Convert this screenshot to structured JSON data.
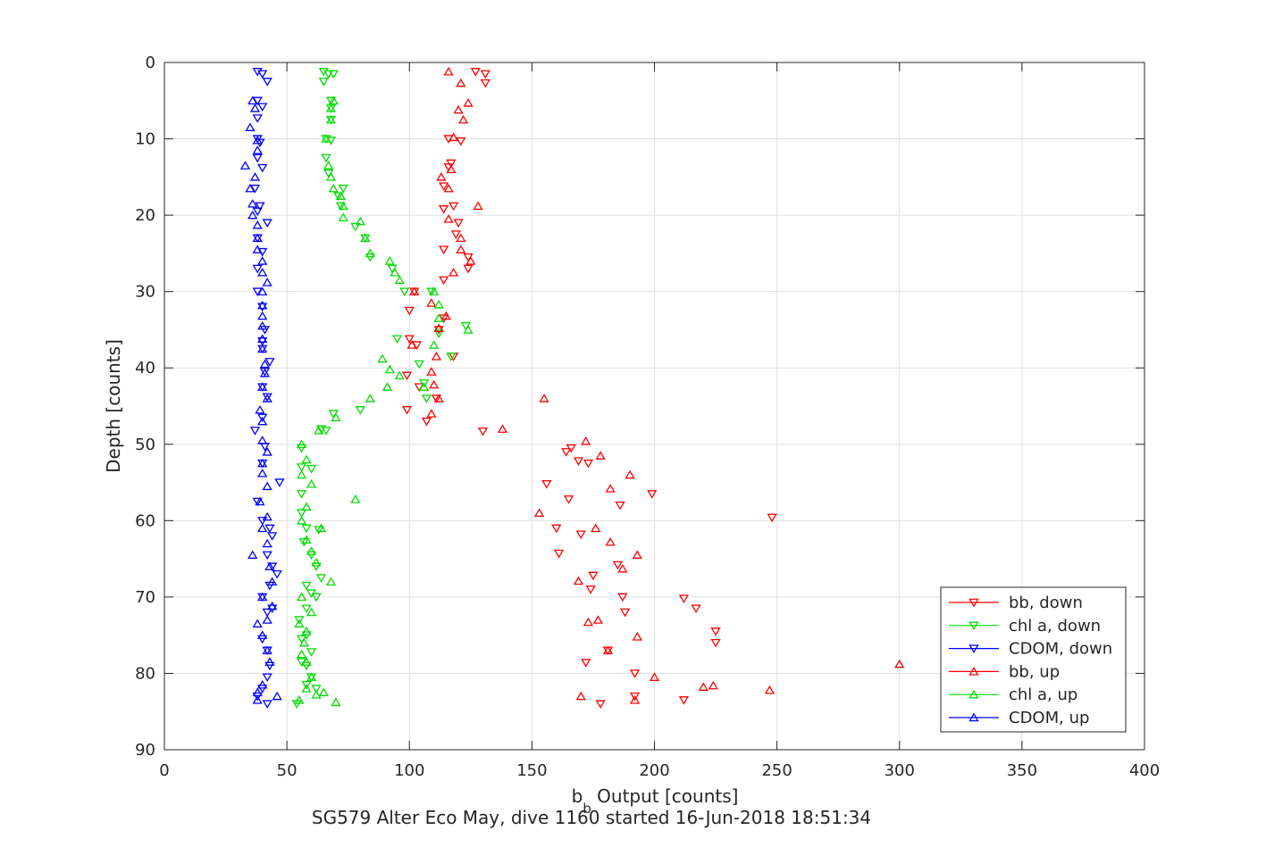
{
  "chart_data": {
    "type": "scatter",
    "title": "SG579 Alter Eco May, dive 1160 started 16-Jun-2018 18:51:34",
    "xlabel": {
      "main": "b",
      "subscript": "b",
      "suffix": " Output [counts]"
    },
    "ylabel": "Depth [counts]",
    "xlim": [
      0,
      400
    ],
    "ylim": [
      0,
      90
    ],
    "y_reversed": true,
    "xticks": [
      0,
      50,
      100,
      150,
      200,
      250,
      300,
      350,
      400
    ],
    "yticks": [
      0,
      10,
      20,
      30,
      40,
      50,
      60,
      70,
      80,
      90
    ],
    "grid": true,
    "legend_position": "bottom-right",
    "series": [
      {
        "name": "bb, down",
        "color": "#ff0000",
        "marker": "triangle-down",
        "points": [
          [
            127,
            1.2
          ],
          [
            131,
            1.5
          ],
          [
            131,
            2.7
          ],
          [
            116,
            10
          ],
          [
            121,
            10.3
          ],
          [
            116,
            13.7
          ],
          [
            117,
            13.2
          ],
          [
            114,
            16.2
          ],
          [
            118,
            18.8
          ],
          [
            114,
            19.2
          ],
          [
            120,
            21.0
          ],
          [
            119,
            22.5
          ],
          [
            114,
            24.5
          ],
          [
            124,
            25.5
          ],
          [
            124,
            27.0
          ],
          [
            114,
            28.5
          ],
          [
            102,
            30
          ],
          [
            100,
            32.5
          ],
          [
            114,
            33.5
          ],
          [
            112,
            35.0
          ],
          [
            100,
            36.2
          ],
          [
            103,
            37.0
          ],
          [
            118,
            38.5
          ],
          [
            99,
            41.0
          ],
          [
            104,
            42.5
          ],
          [
            111,
            44.0
          ],
          [
            99,
            45.5
          ],
          [
            107,
            47.0
          ],
          [
            130,
            48.3
          ],
          [
            166,
            50.5
          ],
          [
            164,
            51.0
          ],
          [
            169,
            52.2
          ],
          [
            173,
            52.5
          ],
          [
            156,
            55.2
          ],
          [
            199,
            56.5
          ],
          [
            165,
            57.2
          ],
          [
            186,
            58.0
          ],
          [
            248,
            59.6
          ],
          [
            160,
            61.0
          ],
          [
            170,
            61.8
          ],
          [
            161,
            64.3
          ],
          [
            185,
            65.8
          ],
          [
            175,
            67.2
          ],
          [
            174,
            69.0
          ],
          [
            187,
            70.0
          ],
          [
            212,
            70.2
          ],
          [
            192,
            80.0
          ],
          [
            192,
            83.0
          ],
          [
            178,
            84.0
          ],
          [
            181,
            77.0
          ],
          [
            212,
            83.5
          ],
          [
            225,
            74.5
          ],
          [
            225,
            76.0
          ],
          [
            172,
            78.6
          ],
          [
            188,
            72.0
          ],
          [
            217,
            71.5
          ]
        ]
      },
      {
        "name": "chl a, down",
        "color": "#00dd00",
        "marker": "triangle-down",
        "points": [
          [
            65,
            1.2
          ],
          [
            67,
            1.5
          ],
          [
            69,
            1.5
          ],
          [
            65,
            2.5
          ],
          [
            68,
            5.0
          ],
          [
            68,
            6.0
          ],
          [
            68,
            7.5
          ],
          [
            66,
            10.0
          ],
          [
            68,
            10.2
          ],
          [
            66,
            12.5
          ],
          [
            67,
            14.5
          ],
          [
            73,
            16.5
          ],
          [
            71,
            17.5
          ],
          [
            72,
            18.8
          ],
          [
            78,
            21.5
          ],
          [
            82,
            23.0
          ],
          [
            84,
            25.5
          ],
          [
            93,
            27.0
          ],
          [
            98,
            30.0
          ],
          [
            109,
            30.0
          ],
          [
            112,
            35.5
          ],
          [
            123,
            34.5
          ],
          [
            95,
            36.2
          ],
          [
            117,
            38.5
          ],
          [
            104,
            39.5
          ],
          [
            106,
            42.0
          ],
          [
            107,
            44.0
          ],
          [
            80,
            45.5
          ],
          [
            69,
            46.0
          ],
          [
            64,
            48.0
          ],
          [
            66,
            48.2
          ],
          [
            56,
            50.5
          ],
          [
            56,
            53.0
          ],
          [
            60,
            53.2
          ],
          [
            56,
            56.5
          ],
          [
            56,
            59.0
          ],
          [
            58,
            61.0
          ],
          [
            63,
            61.2
          ],
          [
            57,
            62.8
          ],
          [
            60,
            64.5
          ],
          [
            62,
            66.0
          ],
          [
            64,
            67.5
          ],
          [
            58,
            68.5
          ],
          [
            60,
            69.5
          ],
          [
            62,
            70.0
          ],
          [
            58,
            71.5
          ],
          [
            55,
            73.0
          ],
          [
            58,
            75.0
          ],
          [
            56,
            75.5
          ],
          [
            60,
            77.2
          ],
          [
            56,
            78.5
          ],
          [
            58,
            79.0
          ],
          [
            60,
            80.5
          ],
          [
            58,
            81.5
          ],
          [
            54,
            84.0
          ],
          [
            62,
            82.0
          ]
        ]
      },
      {
        "name": "CDOM, down",
        "color": "#0000ff",
        "marker": "triangle-down",
        "points": [
          [
            38,
            1.2
          ],
          [
            40,
            1.5
          ],
          [
            42,
            2.5
          ],
          [
            38,
            5.0
          ],
          [
            40,
            5.8
          ],
          [
            38,
            7.3
          ],
          [
            38,
            10.0
          ],
          [
            39,
            10.5
          ],
          [
            38,
            12.5
          ],
          [
            40,
            13.8
          ],
          [
            37,
            16.5
          ],
          [
            39,
            18.8
          ],
          [
            38,
            19.5
          ],
          [
            42,
            21.0
          ],
          [
            38,
            23.0
          ],
          [
            40,
            24.8
          ],
          [
            38,
            27.0
          ],
          [
            38,
            30.0
          ],
          [
            40,
            32.0
          ],
          [
            41,
            35.0
          ],
          [
            40,
            36.5
          ],
          [
            40,
            37.5
          ],
          [
            43,
            39.2
          ],
          [
            41,
            40.5
          ],
          [
            40,
            42.5
          ],
          [
            42,
            43.8
          ],
          [
            40,
            46.5
          ],
          [
            37,
            48.2
          ],
          [
            41,
            50.3
          ],
          [
            40,
            52.5
          ],
          [
            47,
            55.0
          ],
          [
            38,
            57.5
          ],
          [
            40,
            60.0
          ],
          [
            43,
            61.0
          ],
          [
            44,
            62.0
          ],
          [
            42,
            64.5
          ],
          [
            44,
            66.0
          ],
          [
            46,
            67.0
          ],
          [
            43,
            68.5
          ],
          [
            40,
            70.0
          ],
          [
            44,
            71.5
          ],
          [
            42,
            72.0
          ],
          [
            40,
            75.5
          ],
          [
            42,
            77.0
          ],
          [
            43,
            79.0
          ],
          [
            42,
            80.5
          ],
          [
            40,
            82.0
          ],
          [
            38,
            83.0
          ],
          [
            42,
            84.0
          ]
        ]
      },
      {
        "name": "bb, up",
        "color": "#ff0000",
        "marker": "triangle-up",
        "points": [
          [
            116,
            1.2
          ],
          [
            121,
            2.7
          ],
          [
            124,
            5.3
          ],
          [
            120,
            6.2
          ],
          [
            122,
            7.5
          ],
          [
            118,
            9.8
          ],
          [
            117,
            14.0
          ],
          [
            113,
            15.0
          ],
          [
            116,
            16.5
          ],
          [
            128,
            18.8
          ],
          [
            116,
            20.5
          ],
          [
            121,
            23.0
          ],
          [
            121,
            24.5
          ],
          [
            125,
            26.0
          ],
          [
            118,
            27.5
          ],
          [
            102,
            30.0
          ],
          [
            109,
            31.5
          ],
          [
            115,
            33.2
          ],
          [
            112,
            34.8
          ],
          [
            101,
            37.0
          ],
          [
            111,
            38.5
          ],
          [
            109,
            40.5
          ],
          [
            110,
            42.2
          ],
          [
            112,
            44.0
          ],
          [
            109,
            46.0
          ],
          [
            138,
            48.0
          ],
          [
            155,
            44.0
          ],
          [
            172,
            49.6
          ],
          [
            178,
            51.5
          ],
          [
            190,
            54.0
          ],
          [
            182,
            55.8
          ],
          [
            153,
            59.0
          ],
          [
            176,
            61.0
          ],
          [
            182,
            62.8
          ],
          [
            193,
            64.5
          ],
          [
            187,
            66.3
          ],
          [
            169,
            67.9
          ],
          [
            173,
            73.3
          ],
          [
            177,
            73.0
          ],
          [
            193,
            75.2
          ],
          [
            181,
            77.0
          ],
          [
            300,
            78.8
          ],
          [
            200,
            80.5
          ],
          [
            220,
            81.8
          ],
          [
            224,
            81.6
          ],
          [
            247,
            82.2
          ],
          [
            170,
            83.0
          ],
          [
            192,
            83.5
          ]
        ]
      },
      {
        "name": "chl a, up",
        "color": "#00dd00",
        "marker": "triangle-up",
        "points": [
          [
            69,
            5.0
          ],
          [
            68,
            6.0
          ],
          [
            68,
            7.5
          ],
          [
            66,
            10.0
          ],
          [
            67,
            13.5
          ],
          [
            68,
            15.0
          ],
          [
            69,
            16.5
          ],
          [
            72,
            17.5
          ],
          [
            73,
            18.8
          ],
          [
            73,
            20.3
          ],
          [
            80,
            20.8
          ],
          [
            82,
            23.0
          ],
          [
            84,
            25.0
          ],
          [
            92,
            26.0
          ],
          [
            94,
            27.5
          ],
          [
            96,
            28.5
          ],
          [
            110,
            30.0
          ],
          [
            112,
            31.7
          ],
          [
            112,
            33.5
          ],
          [
            124,
            35.0
          ],
          [
            110,
            37.0
          ],
          [
            89,
            38.8
          ],
          [
            92,
            40.2
          ],
          [
            96,
            41.0
          ],
          [
            91,
            42.5
          ],
          [
            106,
            42.5
          ],
          [
            84,
            44.0
          ],
          [
            70,
            46.5
          ],
          [
            63,
            48.2
          ],
          [
            56,
            50.0
          ],
          [
            58,
            52.0
          ],
          [
            56,
            54.0
          ],
          [
            60,
            55.2
          ],
          [
            78,
            57.2
          ],
          [
            58,
            58.2
          ],
          [
            56,
            60.0
          ],
          [
            64,
            61.0
          ],
          [
            58,
            62.5
          ],
          [
            60,
            64.0
          ],
          [
            62,
            65.5
          ],
          [
            68,
            68.0
          ],
          [
            56,
            70.0
          ],
          [
            60,
            72.0
          ],
          [
            55,
            73.5
          ],
          [
            58,
            74.5
          ],
          [
            57,
            76.0
          ],
          [
            56,
            77.5
          ],
          [
            58,
            78.5
          ],
          [
            60,
            80.5
          ],
          [
            58,
            82.0
          ],
          [
            62,
            82.8
          ],
          [
            65,
            82.5
          ],
          [
            55,
            83.5
          ],
          [
            70,
            83.8
          ]
        ]
      },
      {
        "name": "CDOM, up",
        "color": "#0000ff",
        "marker": "triangle-up",
        "points": [
          [
            36,
            5.0
          ],
          [
            37,
            6.0
          ],
          [
            35,
            8.5
          ],
          [
            38,
            10.2
          ],
          [
            38,
            11.5
          ],
          [
            33,
            13.5
          ],
          [
            37,
            15.0
          ],
          [
            35,
            16.5
          ],
          [
            36,
            18.5
          ],
          [
            36,
            20.0
          ],
          [
            38,
            21.3
          ],
          [
            38,
            23.0
          ],
          [
            38,
            24.5
          ],
          [
            40,
            26.0
          ],
          [
            40,
            27.5
          ],
          [
            42,
            28.8
          ],
          [
            40,
            30.0
          ],
          [
            40,
            31.8
          ],
          [
            40,
            33.2
          ],
          [
            40,
            34.5
          ],
          [
            40,
            36.2
          ],
          [
            40,
            37.5
          ],
          [
            41,
            39.5
          ],
          [
            41,
            40.7
          ],
          [
            40,
            42.5
          ],
          [
            42,
            44.0
          ],
          [
            39,
            45.5
          ],
          [
            40,
            47.0
          ],
          [
            40,
            49.5
          ],
          [
            42,
            51.0
          ],
          [
            40,
            52.5
          ],
          [
            40,
            53.8
          ],
          [
            42,
            55.5
          ],
          [
            39,
            57.5
          ],
          [
            42,
            59.5
          ],
          [
            40,
            61.0
          ],
          [
            42,
            63.0
          ],
          [
            36,
            64.5
          ],
          [
            43,
            66.0
          ],
          [
            44,
            68.0
          ],
          [
            40,
            70.0
          ],
          [
            44,
            71.2
          ],
          [
            38,
            73.5
          ],
          [
            42,
            73.0
          ],
          [
            40,
            75.0
          ],
          [
            42,
            77.0
          ],
          [
            43,
            78.5
          ],
          [
            40,
            81.5
          ],
          [
            38,
            82.5
          ],
          [
            46,
            83.0
          ],
          [
            38,
            83.5
          ]
        ]
      }
    ]
  }
}
